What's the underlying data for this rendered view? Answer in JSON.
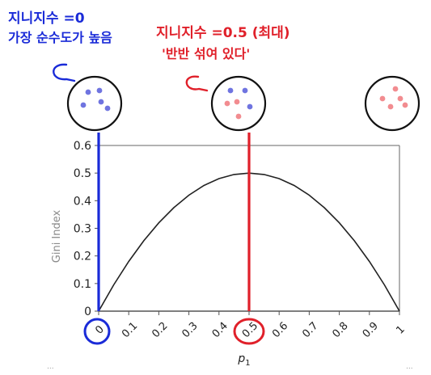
{
  "annotations": {
    "left": {
      "line1": "지니지수 =0",
      "line2": "가장 순수도가 높음",
      "color": "#1a2bd8"
    },
    "middle": {
      "line1": "지니지수 =0.5 (최대)",
      "line2": "'반반 섞여 있다'",
      "color": "#e0202a"
    }
  },
  "footer_dots": {
    "left": "...",
    "right": "..."
  },
  "colors": {
    "curve": "#222222",
    "axis": "#555555",
    "frame": "#666666",
    "blue_marker": "#1a2bd8",
    "red_marker": "#e0202a",
    "blue_dot": "#6f74e0",
    "red_dot": "#f28c90",
    "ylabel_gray": "#8a8a8a"
  },
  "circles": [
    {
      "name": "pure-blue",
      "blue": 5,
      "red": 0
    },
    {
      "name": "mixed",
      "blue": 3,
      "red": 3
    },
    {
      "name": "pure-red",
      "blue": 0,
      "red": 5
    }
  ],
  "markers": [
    {
      "x": 0,
      "color_key": "blue_marker",
      "label": "0"
    },
    {
      "x": 0.5,
      "color_key": "red_marker",
      "label": "0.5"
    }
  ],
  "chart_data": {
    "type": "line",
    "title": "",
    "xlabel": "p1",
    "ylabel": "Gini Index",
    "xlim": [
      0,
      1
    ],
    "ylim": [
      0,
      0.6
    ],
    "xticks": [
      "0",
      "0.1",
      "0.2",
      "0.3",
      "0.4",
      "0.5",
      "0.6",
      "0.7",
      "0.8",
      "0.9",
      "1"
    ],
    "yticks": [
      "0",
      "0.1",
      "0.2",
      "0.3",
      "0.4",
      "0.5",
      "0.6"
    ],
    "grid": false,
    "series": [
      {
        "x": [
          0,
          0.05,
          0.1,
          0.15,
          0.2,
          0.25,
          0.3,
          0.35,
          0.4,
          0.45,
          0.5,
          0.55,
          0.6,
          0.65,
          0.7,
          0.75,
          0.8,
          0.85,
          0.9,
          0.95,
          1
        ],
        "y": [
          0,
          0.095,
          0.18,
          0.255,
          0.32,
          0.375,
          0.42,
          0.455,
          0.48,
          0.495,
          0.5,
          0.495,
          0.48,
          0.455,
          0.42,
          0.375,
          0.32,
          0.255,
          0.18,
          0.095,
          0
        ]
      }
    ]
  }
}
